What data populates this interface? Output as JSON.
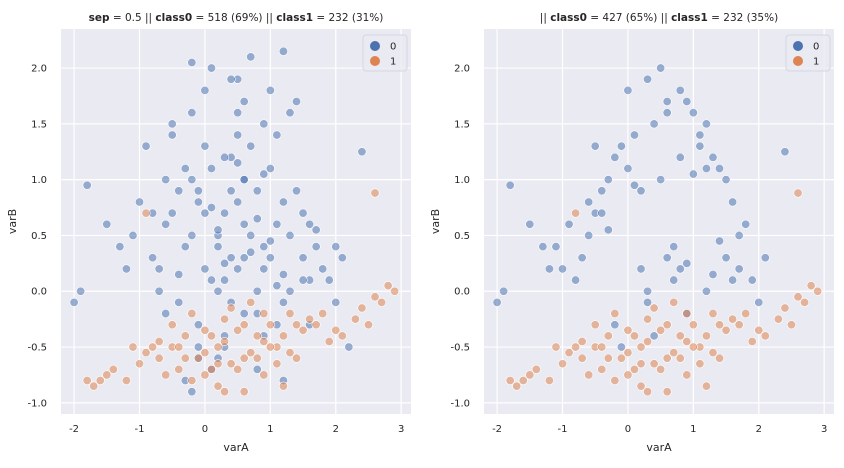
{
  "colors": {
    "class0": "#4c72b0",
    "class1": "#dd8452",
    "plot_bg": "#eaeaf2",
    "grid": "#ffffff"
  },
  "chart_data": [
    {
      "type": "scatter",
      "title_parts": [
        {
          "text": "sep",
          "bold": true
        },
        {
          "text": " = 0.5 || ",
          "bold": false
        },
        {
          "text": "class0",
          "bold": true
        },
        {
          "text": " = 518 (69%)  || ",
          "bold": false
        },
        {
          "text": "class1",
          "bold": true
        },
        {
          "text": " = 232 (31%)",
          "bold": false
        }
      ],
      "xlabel": "varA",
      "ylabel": "varB",
      "xlim": [
        -2.2,
        3.15
      ],
      "ylim": [
        -1.1,
        2.35
      ],
      "xticks": [
        "-2",
        "-1",
        "0",
        "1",
        "2",
        "3"
      ],
      "yticks": [
        "-1.0",
        "-0.5",
        "0.0",
        "0.5",
        "1.0",
        "1.5",
        "2.0"
      ],
      "grid": true,
      "legend_position": "top-right",
      "legend": [
        "0",
        "1"
      ],
      "series": [
        {
          "name": "0",
          "x": [
            0.5,
            0.3,
            0.6,
            0.8,
            0.9,
            0.2,
            0.4,
            0.1,
            1.0,
            0.7,
            0.6,
            0.3,
            0.5,
            0.8,
            1.2,
            1.1,
            1.3,
            0.9,
            0.4,
            0.2,
            0.0,
            -0.1,
            -0.2,
            0.1,
            0.4,
            0.6,
            1.4,
            1.5,
            1.6,
            1.0,
            0.7,
            0.5,
            0.3,
            0.0,
            -0.3,
            -0.4,
            -0.5,
            -0.2,
            0.2,
            0.8,
            1.2,
            1.6,
            1.8,
            1.7,
            1.5,
            1.1,
            0.9,
            0.6,
            0.3,
            -0.1,
            -0.4,
            -0.7,
            -0.8,
            -0.6,
            -0.3,
            0.0,
            0.4,
            0.9,
            1.3,
            1.9,
            2.0,
            2.1,
            1.4,
            1.0,
            0.5,
            0.1,
            -0.2,
            -0.5,
            -0.9,
            -1.0,
            -1.1,
            -0.7,
            -0.1,
            0.3,
            0.8,
            1.2,
            1.6,
            2.2,
            -1.3,
            -1.5,
            -1.2,
            -0.6,
            0.0,
            0.6,
            1.1,
            2.4,
            -1.9,
            -2.0,
            -1.8,
            -0.1,
            -0.3,
            -0.2,
            0.1,
            0.2,
            -0.4,
            -0.6,
            -0.1,
            0.5,
            1.1,
            0.7,
            0.2,
            -0.8,
            0.1,
            1.2,
            0.9,
            1.7,
            1.2,
            -0.2,
            0.4,
            0.5,
            2.0,
            -0.5,
            0.7,
            1.3,
            0.3,
            1.0,
            1.5,
            0.8,
            0.6
          ],
          "y": [
            0.2,
            0.1,
            0.3,
            0.0,
            0.2,
            0.4,
            -0.1,
            0.1,
            0.3,
            0.5,
            0.6,
            0.7,
            0.8,
            0.9,
            0.8,
            0.6,
            0.5,
            0.4,
            0.3,
            0.5,
            0.7,
            0.9,
            1.0,
            1.1,
            1.2,
            1.0,
            0.9,
            0.7,
            0.6,
            1.1,
            1.3,
            1.4,
            1.2,
            1.3,
            1.1,
            0.9,
            0.7,
            0.5,
            0.0,
            -0.2,
            -0.1,
            0.1,
            0.2,
            0.4,
            0.3,
            -0.3,
            -0.4,
            -0.2,
            -0.5,
            -0.3,
            -0.1,
            0.0,
            0.3,
            0.6,
            0.4,
            0.2,
            0.9,
            1.5,
            1.6,
            0.1,
            -0.1,
            0.3,
            1.7,
            1.8,
            1.9,
            2.0,
            1.6,
            1.5,
            1.3,
            0.8,
            0.5,
            0.2,
            -0.6,
            -0.4,
            -0.7,
            -0.8,
            -0.3,
            -0.5,
            0.4,
            0.6,
            0.2,
            1.0,
            1.8,
            1.7,
            1.4,
            1.25,
            0.0,
            -0.1,
            0.95,
            -0.5,
            -0.8,
            -0.9,
            -0.7,
            -0.6,
            0.15,
            -0.2,
            0.8,
            1.15,
            0.05,
            0.35,
            0.55,
            0.7,
            0.75,
            0.15,
            1.05,
            0.55,
            2.15,
            2.05,
            1.9,
            1.6,
            0.4,
            1.4,
            2.1,
            0.0,
            0.25,
            0.45,
            0.1,
            0.65,
            1.0
          ]
        },
        {
          "name": "1",
          "x": [
            -1.8,
            -1.7,
            -1.5,
            -1.4,
            -1.2,
            -1.0,
            -0.9,
            -0.7,
            -0.5,
            -0.4,
            -0.3,
            -0.1,
            0.0,
            0.2,
            0.3,
            0.5,
            0.6,
            0.8,
            1.0,
            1.1,
            1.3,
            1.5,
            1.7,
            1.9,
            2.1,
            2.3,
            2.5,
            2.7,
            2.8,
            -0.6,
            -0.2,
            0.1,
            0.4,
            0.7,
            0.9,
            1.2,
            1.4,
            1.6,
            1.8,
            2.0,
            -0.8,
            -0.3,
            0.2,
            0.5,
            0.8,
            1.0,
            1.3,
            -0.5,
            0.0,
            0.3,
            0.6,
            0.9,
            2.4,
            2.6,
            2.9,
            -0.7,
            -0.4,
            0.1,
            0.2,
            0.6,
            0.9,
            1.4,
            -1.1,
            -1.6,
            -0.2,
            0.4,
            0.7,
            0.0,
            1.1,
            1.2,
            0.3,
            -0.9,
            2.6
          ],
          "y": [
            -0.8,
            -0.85,
            -0.75,
            -0.7,
            -0.8,
            -0.65,
            -0.55,
            -0.6,
            -0.5,
            -0.7,
            -0.4,
            -0.6,
            -0.55,
            -0.5,
            -0.45,
            -0.35,
            -0.6,
            -0.4,
            -0.3,
            -0.5,
            -0.2,
            -0.35,
            -0.3,
            -0.45,
            -0.4,
            -0.25,
            -0.3,
            -0.1,
            0.05,
            -0.75,
            -0.8,
            -0.7,
            -0.65,
            -0.55,
            -0.45,
            -0.4,
            -0.3,
            -0.25,
            -0.2,
            -0.35,
            -0.5,
            -0.6,
            -0.65,
            -0.7,
            -0.6,
            -0.5,
            -0.55,
            -0.3,
            -0.35,
            -0.25,
            -0.3,
            -0.2,
            -0.15,
            -0.05,
            0.0,
            -0.45,
            -0.5,
            -0.4,
            -0.85,
            -0.9,
            -0.75,
            -0.6,
            -0.5,
            -0.8,
            -0.2,
            -0.15,
            -0.1,
            -0.75,
            -0.65,
            -0.85,
            -0.9,
            0.7,
            0.88
          ]
        }
      ]
    },
    {
      "type": "scatter",
      "title_parts": [
        {
          "text": "|| ",
          "bold": false
        },
        {
          "text": "class0",
          "bold": true
        },
        {
          "text": " = 427 (65%)  || ",
          "bold": false
        },
        {
          "text": "class1",
          "bold": true
        },
        {
          "text": " = 232 (35%)",
          "bold": false
        }
      ],
      "xlabel": "varA",
      "ylabel": "varB",
      "xlim": [
        -2.2,
        3.15
      ],
      "ylim": [
        -1.1,
        2.35
      ],
      "xticks": [
        "-2",
        "-1",
        "0",
        "1",
        "2",
        "3"
      ],
      "yticks": [
        "-1.0",
        "-0.5",
        "0.0",
        "0.5",
        "1.0",
        "1.5",
        "2.0"
      ],
      "grid": true,
      "legend_position": "top-right",
      "legend": [
        "0",
        "1"
      ],
      "series": [
        {
          "name": "0",
          "x": [
            0.5,
            0.3,
            0.8,
            0.9,
            1.0,
            0.4,
            0.1,
            -0.1,
            -0.2,
            1.2,
            1.1,
            1.3,
            1.4,
            1.5,
            0.0,
            -0.3,
            -0.4,
            -0.5,
            1.6,
            1.8,
            1.7,
            0.7,
            0.6,
            0.2,
            -0.6,
            -0.7,
            -0.8,
            -1.0,
            -1.1,
            -0.9,
            1.9,
            2.0,
            2.1,
            0.3,
            0.9,
            1.2,
            1.6,
            -0.2,
            0.4,
            -1.3,
            -1.5,
            -1.2,
            0.0,
            0.6,
            1.1,
            2.4,
            -1.9,
            -2.0,
            -1.8,
            -0.1,
            0.8,
            0.2,
            0.1,
            0.5,
            1.0,
            -0.4,
            0.7,
            1.3,
            1.5,
            0.9,
            -0.6,
            -0.3,
            0.3,
            1.4,
            1.7,
            -0.5,
            0.6,
            1.2,
            0.8
          ],
          "y": [
            2.0,
            1.9,
            1.8,
            1.7,
            1.6,
            1.5,
            1.4,
            1.3,
            1.2,
            1.5,
            1.3,
            1.2,
            1.1,
            1.0,
            1.1,
            1.0,
            0.9,
            0.7,
            0.8,
            0.6,
            0.5,
            0.4,
            0.3,
            0.2,
            0.5,
            0.3,
            0.1,
            0.2,
            0.4,
            0.6,
            0.1,
            -0.1,
            0.3,
            -0.1,
            -0.2,
            0.0,
            0.1,
            -0.3,
            -0.4,
            0.4,
            0.6,
            0.2,
            1.8,
            1.7,
            1.4,
            1.25,
            0.0,
            -0.1,
            0.95,
            -0.5,
            0.2,
            0.9,
            0.95,
            1.0,
            1.05,
            0.7,
            0.1,
            0.15,
            0.3,
            0.25,
            0.8,
            0.55,
            0.0,
            0.45,
            0.2,
            1.3,
            1.6,
            1.1,
            1.2
          ]
        },
        {
          "name": "1",
          "x": [
            -1.8,
            -1.7,
            -1.5,
            -1.4,
            -1.2,
            -1.0,
            -0.9,
            -0.7,
            -0.5,
            -0.4,
            -0.3,
            -0.1,
            0.0,
            0.2,
            0.3,
            0.5,
            0.6,
            0.8,
            1.0,
            1.1,
            1.3,
            1.5,
            1.7,
            1.9,
            2.1,
            2.3,
            2.5,
            2.7,
            2.8,
            -0.6,
            -0.2,
            0.1,
            0.4,
            0.7,
            0.9,
            1.2,
            1.4,
            1.6,
            1.8,
            2.0,
            -0.8,
            -0.3,
            0.2,
            0.5,
            0.8,
            1.0,
            1.3,
            -0.5,
            0.0,
            0.3,
            0.6,
            0.9,
            2.4,
            2.6,
            2.9,
            -0.7,
            -0.4,
            0.1,
            0.2,
            0.6,
            0.9,
            1.4,
            -1.1,
            -1.6,
            -0.2,
            0.4,
            0.7,
            0.0,
            1.1,
            1.2,
            0.3,
            -0.8,
            2.6
          ],
          "y": [
            -0.8,
            -0.85,
            -0.75,
            -0.7,
            -0.8,
            -0.65,
            -0.55,
            -0.6,
            -0.5,
            -0.7,
            -0.4,
            -0.6,
            -0.55,
            -0.5,
            -0.45,
            -0.35,
            -0.6,
            -0.4,
            -0.3,
            -0.5,
            -0.2,
            -0.35,
            -0.3,
            -0.45,
            -0.4,
            -0.25,
            -0.3,
            -0.1,
            0.05,
            -0.75,
            -0.8,
            -0.7,
            -0.65,
            -0.55,
            -0.45,
            -0.4,
            -0.3,
            -0.25,
            -0.2,
            -0.35,
            -0.5,
            -0.6,
            -0.65,
            -0.7,
            -0.6,
            -0.5,
            -0.55,
            -0.3,
            -0.35,
            -0.25,
            -0.3,
            -0.2,
            -0.15,
            -0.05,
            0.0,
            -0.45,
            -0.5,
            -0.4,
            -0.85,
            -0.9,
            -0.75,
            -0.6,
            -0.5,
            -0.8,
            -0.2,
            -0.15,
            -0.1,
            -0.75,
            -0.65,
            -0.85,
            -0.9,
            0.7,
            0.88
          ]
        }
      ]
    }
  ]
}
